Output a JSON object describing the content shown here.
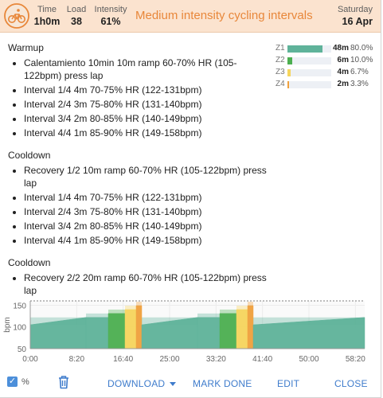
{
  "header": {
    "stats": [
      {
        "label": "Time",
        "value": "1h0m"
      },
      {
        "label": "Load",
        "value": "38"
      },
      {
        "label": "Intensity",
        "value": "61%"
      }
    ],
    "title": "Medium intensity cycling intervals",
    "date_day": "Saturday",
    "date_dm": "16 Apr",
    "icon": "cycling-icon"
  },
  "blocks": [
    {
      "title": "Warmup",
      "items": [
        "Calentamiento 10min 10m ramp 60-70% HR (105-122bpm) press lap",
        "Interval 1/4 4m 70-75% HR (122-131bpm)",
        "Interval 2/4 3m 75-80% HR (131-140bpm)",
        "Interval 3/4 2m 80-85% HR (140-149bpm)",
        "Interval 4/4 1m 85-90% HR (149-158bpm)"
      ]
    },
    {
      "title": "Cooldown",
      "items": [
        "Recovery 1/2 10m ramp 60-70% HR (105-122bpm) press lap",
        "Interval 1/4 4m 70-75% HR (122-131bpm)",
        "Interval 2/4 3m 75-80% HR (131-140bpm)",
        "Interval 3/4 2m 80-85% HR (140-149bpm)",
        "Interval 4/4 1m 85-90% HR (149-158bpm)"
      ]
    },
    {
      "title": "Cooldown",
      "items": [
        "Recovery 2/2 20m ramp 60-70% HR (105-122bpm) press lap"
      ]
    }
  ],
  "zones": [
    {
      "label": "Z1",
      "time": "48m",
      "percent": "80.0%",
      "fraction": 0.8,
      "color": "#5fb39a"
    },
    {
      "label": "Z2",
      "time": "6m",
      "percent": "10.0%",
      "fraction": 0.1,
      "color": "#4caf50"
    },
    {
      "label": "Z3",
      "time": "4m",
      "percent": "6.7%",
      "fraction": 0.067,
      "color": "#f6d55c"
    },
    {
      "label": "Z4",
      "time": "2m",
      "percent": "3.3%",
      "fraction": 0.033,
      "color": "#f0a03c"
    }
  ],
  "chart_data": {
    "type": "area",
    "ylabel": "bpm",
    "yticks": [
      "150",
      "100",
      "50"
    ],
    "ylim": [
      50,
      160
    ],
    "xlim_seconds": [
      0,
      3600
    ],
    "xticks": [
      "0:00",
      "8:20",
      "16:40",
      "25:00",
      "33:20",
      "41:40",
      "50:00",
      "58:20"
    ],
    "segments": [
      {
        "start_min": 0,
        "end_min": 10,
        "from_bpm": 105,
        "to_bpm": 122,
        "zone": "Z1",
        "color": "#5fb39a"
      },
      {
        "start_min": 10,
        "end_min": 14,
        "from_bpm": 122,
        "to_bpm": 131,
        "zone": "Z1",
        "color": "#5fb39a"
      },
      {
        "start_min": 14,
        "end_min": 17,
        "from_bpm": 131,
        "to_bpm": 140,
        "zone": "Z2",
        "color": "#4caf50"
      },
      {
        "start_min": 17,
        "end_min": 19,
        "from_bpm": 140,
        "to_bpm": 149,
        "zone": "Z3",
        "color": "#f6d55c"
      },
      {
        "start_min": 19,
        "end_min": 20,
        "from_bpm": 149,
        "to_bpm": 158,
        "zone": "Z4",
        "color": "#f0a03c"
      },
      {
        "start_min": 20,
        "end_min": 30,
        "from_bpm": 105,
        "to_bpm": 122,
        "zone": "Z1",
        "color": "#5fb39a"
      },
      {
        "start_min": 30,
        "end_min": 34,
        "from_bpm": 122,
        "to_bpm": 131,
        "zone": "Z1",
        "color": "#5fb39a"
      },
      {
        "start_min": 34,
        "end_min": 37,
        "from_bpm": 131,
        "to_bpm": 140,
        "zone": "Z2",
        "color": "#4caf50"
      },
      {
        "start_min": 37,
        "end_min": 39,
        "from_bpm": 140,
        "to_bpm": 149,
        "zone": "Z3",
        "color": "#f6d55c"
      },
      {
        "start_min": 39,
        "end_min": 40,
        "from_bpm": 149,
        "to_bpm": 158,
        "zone": "Z4",
        "color": "#f0a03c"
      },
      {
        "start_min": 40,
        "end_min": 60,
        "from_bpm": 105,
        "to_bpm": 122,
        "zone": "Z1",
        "color": "#5fb39a"
      }
    ]
  },
  "footer": {
    "percent_label": "%",
    "download_label": "DOWNLOAD",
    "mark_done_label": "MARK DONE",
    "edit_label": "EDIT",
    "close_label": "CLOSE"
  },
  "colors": {
    "header_bg": "#fbe3cf",
    "title": "#e8873a",
    "accent": "#3f7ccc"
  }
}
